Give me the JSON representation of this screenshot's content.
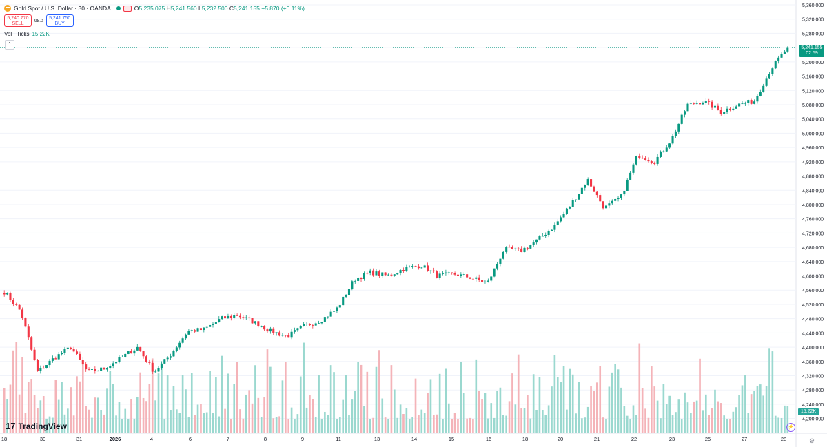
{
  "header": {
    "symbol_title": "Gold Spot / U.S. Dollar · 30 · OANDA",
    "ohlc": {
      "o_label": "O",
      "o": "5,235.075",
      "h_label": "H",
      "h": "5,241.560",
      "l_label": "L",
      "l": "5,232.500",
      "c_label": "C",
      "c": "5,241.155",
      "change": "+5.870 (+0.11%)"
    },
    "sell": {
      "price": "5,240.770",
      "label": "SELL"
    },
    "spread": "98.0",
    "buy": {
      "price": "5,241.750",
      "label": "BUY"
    },
    "volume_label": "Vol · Ticks",
    "volume_value": "15.22K"
  },
  "brand": "TradingView",
  "price_tag": {
    "price": "5,241.155",
    "countdown": "02:59"
  },
  "volume_tag": "15.22K",
  "colors": {
    "up": "#089981",
    "down": "#f23645",
    "vol_up": "#9ad8cf",
    "vol_down": "#f4b3b8",
    "grid": "#f0f3fa"
  },
  "chart_data": {
    "type": "candlestick",
    "title": "Gold Spot / U.S. Dollar · 30 · OANDA",
    "ylim": [
      4180,
      5360
    ],
    "y_ticks": [
      4200,
      4240,
      4280,
      4320,
      4360,
      4400,
      4440,
      4480,
      4520,
      4560,
      4600,
      4640,
      4680,
      4720,
      4760,
      4800,
      4840,
      4880,
      4920,
      4960,
      5000,
      5040,
      5080,
      5120,
      5160,
      5200,
      5240,
      5280,
      5320,
      5360
    ],
    "y_tick_labels": [
      "4,200.000",
      "4,240.000",
      "4,280.000",
      "4,320.000",
      "4,360.000",
      "4,400.000",
      "4,440.000",
      "4,480.000",
      "4,520.000",
      "4,560.000",
      "4,600.000",
      "4,640.000",
      "4,680.000",
      "4,720.000",
      "4,760.000",
      "4,800.000",
      "4,840.000",
      "4,880.000",
      "4,920.000",
      "4,960.000",
      "5,000.000",
      "5,040.000",
      "5,080.000",
      "5,120.000",
      "5,160.000",
      "5,200.000",
      "5,240.000",
      "5,280.000",
      "5,320.000",
      "5,360.000"
    ],
    "x_labels": [
      "18",
      "30",
      "31",
      "2026",
      "4",
      "6",
      "7",
      "8",
      "9",
      "11",
      "13",
      "14",
      "15",
      "16",
      "18",
      "20",
      "21",
      "22",
      "23",
      "25",
      "27",
      "28"
    ],
    "x_label_bold": [
      "2026"
    ],
    "approx_close_path": [
      {
        "x": "29",
        "y": 4555
      },
      {
        "x": "29",
        "y": 4500
      },
      {
        "x": "30",
        "y": 4330
      },
      {
        "x": "30",
        "y": 4370
      },
      {
        "x": "30",
        "y": 4400
      },
      {
        "x": "31",
        "y": 4330
      },
      {
        "x": "31",
        "y": 4340
      },
      {
        "x": "2026",
        "y": 4370
      },
      {
        "x": "2026",
        "y": 4400
      },
      {
        "x": "4",
        "y": 4330
      },
      {
        "x": "4",
        "y": 4380
      },
      {
        "x": "5",
        "y": 4445
      },
      {
        "x": "6",
        "y": 4450
      },
      {
        "x": "6",
        "y": 4480
      },
      {
        "x": "7",
        "y": 4490
      },
      {
        "x": "7",
        "y": 4470
      },
      {
        "x": "8",
        "y": 4445
      },
      {
        "x": "8",
        "y": 4430
      },
      {
        "x": "9",
        "y": 4460
      },
      {
        "x": "9",
        "y": 4475
      },
      {
        "x": "11",
        "y": 4510
      },
      {
        "x": "11",
        "y": 4590
      },
      {
        "x": "12",
        "y": 4610
      },
      {
        "x": "13",
        "y": 4600
      },
      {
        "x": "13",
        "y": 4620
      },
      {
        "x": "14",
        "y": 4630
      },
      {
        "x": "15",
        "y": 4600
      },
      {
        "x": "15",
        "y": 4605
      },
      {
        "x": "16",
        "y": 4595
      },
      {
        "x": "17",
        "y": 4580
      },
      {
        "x": "18",
        "y": 4675
      },
      {
        "x": "19",
        "y": 4670
      },
      {
        "x": "20",
        "y": 4700
      },
      {
        "x": "20",
        "y": 4740
      },
      {
        "x": "21",
        "y": 4800
      },
      {
        "x": "21",
        "y": 4870
      },
      {
        "x": "22",
        "y": 4790
      },
      {
        "x": "22",
        "y": 4820
      },
      {
        "x": "23",
        "y": 4940
      },
      {
        "x": "23",
        "y": 4920
      },
      {
        "x": "24",
        "y": 4980
      },
      {
        "x": "25",
        "y": 5080
      },
      {
        "x": "26",
        "y": 5090
      },
      {
        "x": "26",
        "y": 5060
      },
      {
        "x": "27",
        "y": 5080
      },
      {
        "x": "27",
        "y": 5090
      },
      {
        "x": "28",
        "y": 5180
      },
      {
        "x": "28",
        "y": 5241
      }
    ],
    "volume": {
      "label": "Vol · Ticks",
      "last": "15.22K"
    },
    "last_price": 5241.155,
    "grid": true
  }
}
